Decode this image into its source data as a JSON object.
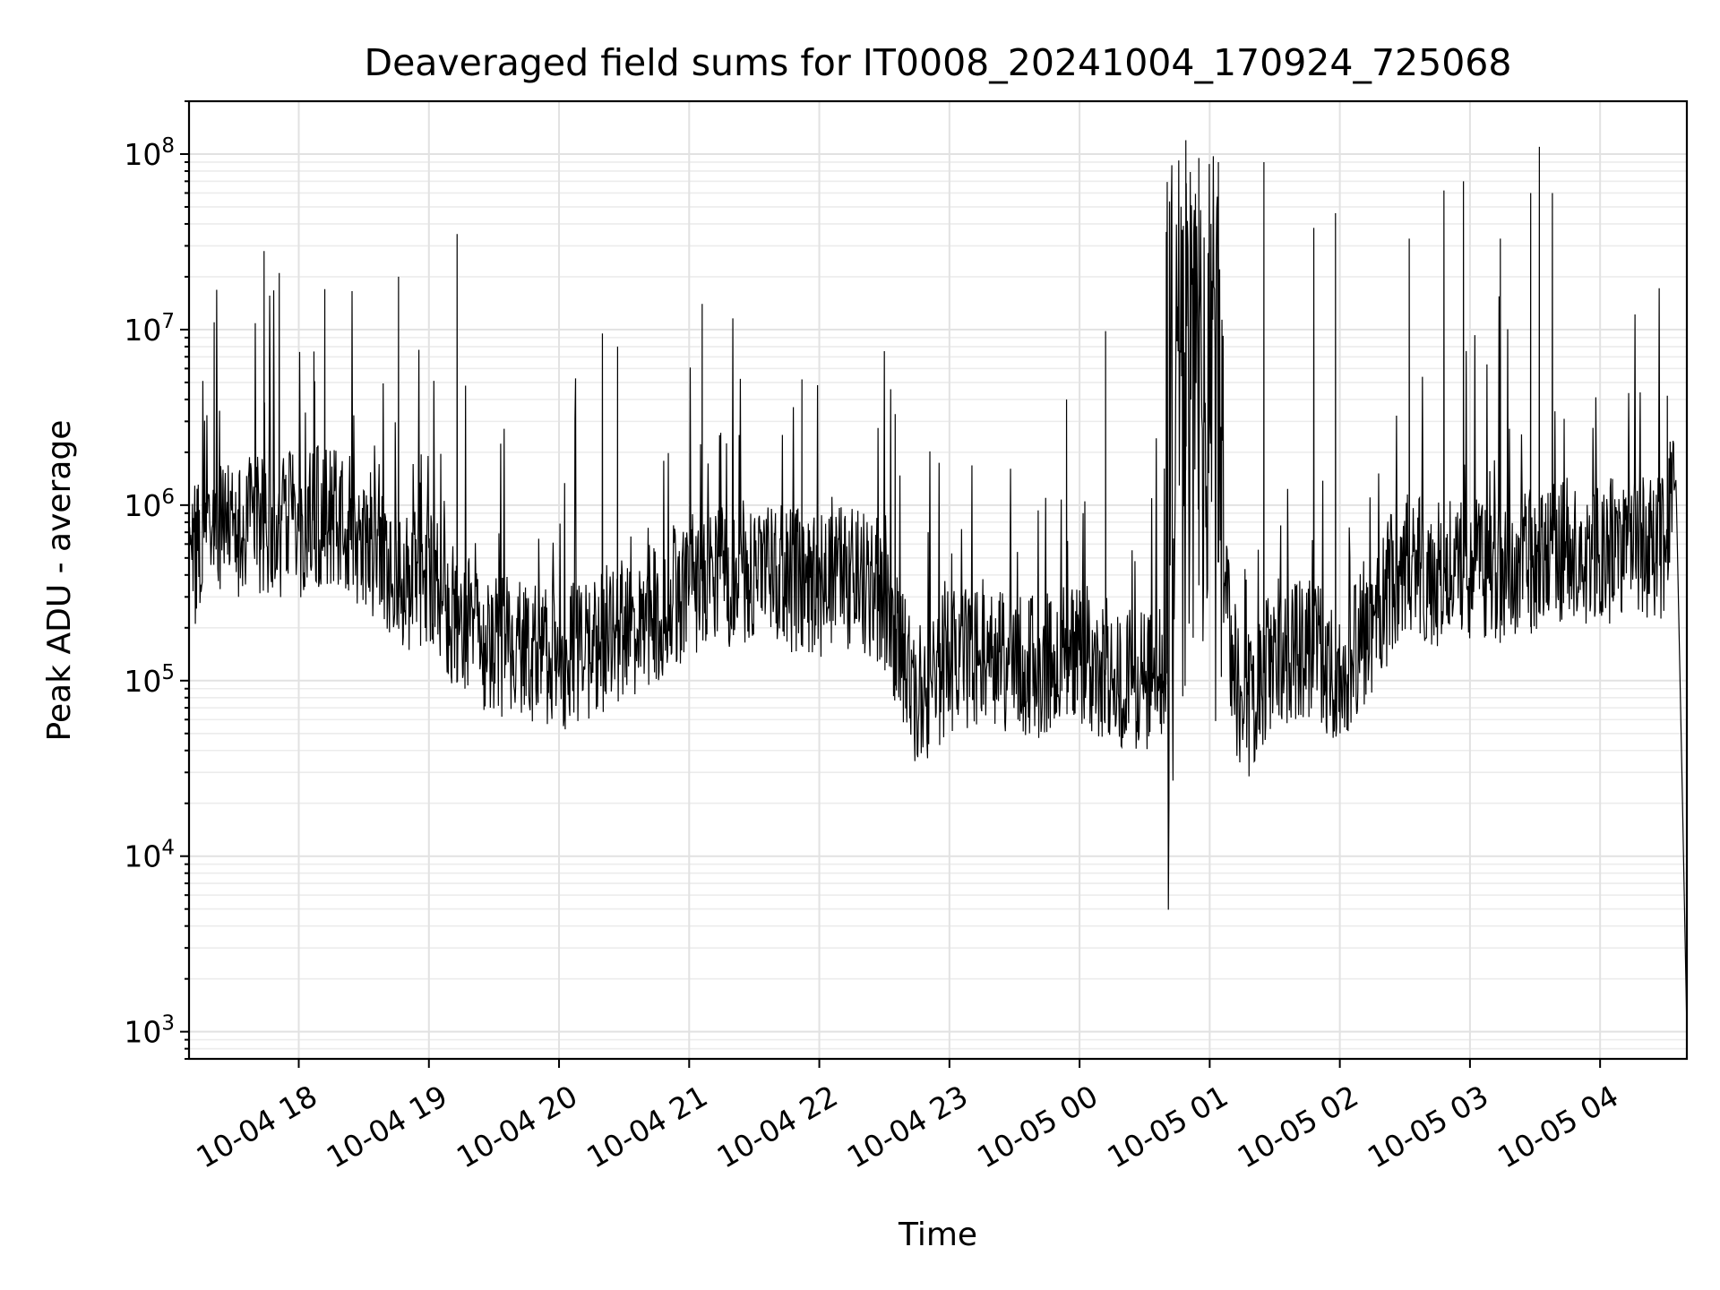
{
  "chart_data": {
    "type": "line",
    "title": "Deaveraged field sums for IT0008_20241004_170924_725068",
    "xlabel": "Time",
    "ylabel": "Peak ADU - average",
    "yscale": "log",
    "ylim": [
      700,
      200000000
    ],
    "xlim": [
      "2024-10-04 17:09:24",
      "2024-10-05 04:40:00"
    ],
    "grid": true,
    "x_ticks": [
      {
        "value": "2024-10-04 18:00",
        "label": "10-04 18"
      },
      {
        "value": "2024-10-04 19:00",
        "label": "10-04 19"
      },
      {
        "value": "2024-10-04 20:00",
        "label": "10-04 20"
      },
      {
        "value": "2024-10-04 21:00",
        "label": "10-04 21"
      },
      {
        "value": "2024-10-04 22:00",
        "label": "10-04 22"
      },
      {
        "value": "2024-10-04 23:00",
        "label": "10-04 23"
      },
      {
        "value": "2024-10-05 00:00",
        "label": "10-05 00"
      },
      {
        "value": "2024-10-05 01:00",
        "label": "10-05 01"
      },
      {
        "value": "2024-10-05 02:00",
        "label": "10-05 02"
      },
      {
        "value": "2024-10-05 03:00",
        "label": "10-05 03"
      },
      {
        "value": "2024-10-05 04:00",
        "label": "10-05 04"
      }
    ],
    "y_ticks": [
      {
        "value": 1000,
        "base": "10",
        "exp": "3"
      },
      {
        "value": 10000,
        "base": "10",
        "exp": "4"
      },
      {
        "value": 100000,
        "base": "10",
        "exp": "5"
      },
      {
        "value": 1000000,
        "base": "10",
        "exp": "6"
      },
      {
        "value": 10000000,
        "base": "10",
        "exp": "7"
      },
      {
        "value": 100000000,
        "base": "10",
        "exp": "8"
      }
    ],
    "series": [
      {
        "color": "#000000",
        "x": [
          "2024-10-04 17:09",
          "2024-10-04 17:20",
          "2024-10-04 17:30",
          "2024-10-04 17:45",
          "2024-10-04 18:00",
          "2024-10-04 18:15",
          "2024-10-04 18:30",
          "2024-10-04 18:45",
          "2024-10-04 19:00",
          "2024-10-04 19:15",
          "2024-10-04 19:30",
          "2024-10-04 19:45",
          "2024-10-04 20:00",
          "2024-10-04 20:15",
          "2024-10-04 20:30",
          "2024-10-04 20:45",
          "2024-10-04 21:00",
          "2024-10-04 21:15",
          "2024-10-04 21:30",
          "2024-10-04 21:45",
          "2024-10-04 22:00",
          "2024-10-04 22:15",
          "2024-10-04 22:30",
          "2024-10-04 22:45",
          "2024-10-04 23:00",
          "2024-10-04 23:15",
          "2024-10-04 23:30",
          "2024-10-04 23:45",
          "2024-10-05 00:00",
          "2024-10-05 00:15",
          "2024-10-05 00:30",
          "2024-10-05 00:40",
          "2024-10-05 00:50",
          "2024-10-05 01:00",
          "2024-10-05 01:15",
          "2024-10-05 01:30",
          "2024-10-05 01:45",
          "2024-10-05 02:00",
          "2024-10-05 02:15",
          "2024-10-05 02:30",
          "2024-10-05 02:45",
          "2024-10-05 03:00",
          "2024-10-05 03:15",
          "2024-10-05 03:30",
          "2024-10-05 03:45",
          "2024-10-05 04:00",
          "2024-10-05 04:15",
          "2024-10-05 04:30",
          "2024-10-05 04:35",
          "2024-10-05 04:38",
          "2024-10-05 04:40"
        ],
        "y": [
          500000,
          700000,
          650000,
          800000,
          750000,
          900000,
          650000,
          400000,
          350000,
          220000,
          160000,
          150000,
          130000,
          160000,
          200000,
          250000,
          350000,
          400000,
          420000,
          380000,
          350000,
          400000,
          300000,
          80000,
          130000,
          150000,
          130000,
          120000,
          140000,
          110000,
          95000,
          110000,
          3000000,
          1000000,
          60000,
          150000,
          150000,
          110000,
          220000,
          500000,
          400000,
          450000,
          400000,
          500000,
          550000,
          550000,
          550000,
          600000,
          1400000,
          20000,
          1000
        ]
      }
    ],
    "peaks": [
      {
        "x": "2024-10-04 17:21",
        "y": 11000000
      },
      {
        "x": "2024-10-04 17:44",
        "y": 28000000
      },
      {
        "x": "2024-10-04 17:51",
        "y": 21000000
      },
      {
        "x": "2024-10-04 18:07",
        "y": 7500000
      },
      {
        "x": "2024-10-04 18:12",
        "y": 17000000
      },
      {
        "x": "2024-10-04 18:46",
        "y": 20000000
      },
      {
        "x": "2024-10-04 19:13",
        "y": 35000000
      },
      {
        "x": "2024-10-04 20:20",
        "y": 9500000
      },
      {
        "x": "2024-10-04 20:27",
        "y": 8000000
      },
      {
        "x": "2024-10-04 21:06",
        "y": 14000000
      },
      {
        "x": "2024-10-04 21:52",
        "y": 5200000
      },
      {
        "x": "2024-10-04 22:35",
        "y": 3300000
      },
      {
        "x": "2024-10-04 23:54",
        "y": 4000000
      },
      {
        "x": "2024-10-05 00:12",
        "y": 9800000
      },
      {
        "x": "2024-10-05 00:40",
        "y": 36000000
      },
      {
        "x": "2024-10-05 00:49",
        "y": 120000000
      },
      {
        "x": "2024-10-05 00:55",
        "y": 95000000
      },
      {
        "x": "2024-10-05 01:04",
        "y": 90000000
      },
      {
        "x": "2024-10-05 01:25",
        "y": 90000000
      },
      {
        "x": "2024-10-05 01:48",
        "y": 38000000
      },
      {
        "x": "2024-10-05 01:58",
        "y": 46000000
      },
      {
        "x": "2024-10-05 02:32",
        "y": 33000000
      },
      {
        "x": "2024-10-05 02:48",
        "y": 62000000
      },
      {
        "x": "2024-10-05 02:57",
        "y": 70000000
      },
      {
        "x": "2024-10-05 03:14",
        "y": 33000000
      },
      {
        "x": "2024-10-05 03:28",
        "y": 60000000
      },
      {
        "x": "2024-10-05 03:32",
        "y": 110000000
      },
      {
        "x": "2024-10-05 03:38",
        "y": 60000000
      },
      {
        "x": "2024-10-05 04:31",
        "y": 4200000
      }
    ]
  }
}
